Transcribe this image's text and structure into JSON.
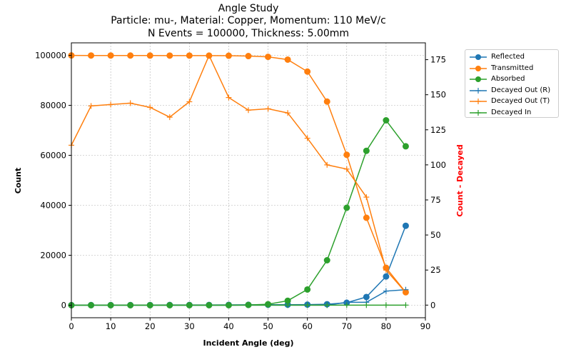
{
  "title_lines": [
    "Angle Study",
    "Particle: mu-, Material: Copper, Momentum: 110 MeV/c",
    "N Events = 100000, Thickness: 5.00mm"
  ],
  "colors": {
    "blue": "#1f77b4",
    "orange": "#ff7f0e",
    "green": "#2ca02c",
    "right_axis_label": "#ff0000",
    "grid": "#b0b0b0"
  },
  "chart_data": {
    "type": "line",
    "xlabel": "Incident Angle (deg)",
    "ylabel": "Count",
    "ylabel_right": "Count - Decayed",
    "xlim": [
      0,
      90
    ],
    "ylim_left": [
      -5000,
      105000
    ],
    "ylim_right": [
      -9,
      187
    ],
    "xticks": [
      "0",
      "10",
      "20",
      "30",
      "40",
      "50",
      "60",
      "70",
      "80",
      "90"
    ],
    "yticks_left": [
      "0",
      "20000",
      "40000",
      "60000",
      "80000",
      "100000"
    ],
    "yticks_right": [
      "0",
      "25",
      "50",
      "75",
      "100",
      "125",
      "150",
      "175"
    ],
    "grid": true,
    "legend_position": "outside-top-right",
    "x": [
      0,
      5,
      10,
      15,
      20,
      25,
      30,
      35,
      40,
      45,
      50,
      55,
      60,
      65,
      70,
      75,
      80,
      85
    ],
    "series": [
      {
        "name": "Reflected",
        "axis": "left",
        "marker": "o",
        "color": "#1f77b4",
        "values": [
          50,
          60,
          60,
          70,
          80,
          90,
          100,
          120,
          150,
          180,
          200,
          220,
          250,
          400,
          1000,
          3300,
          11500,
          31800
        ]
      },
      {
        "name": "Transmitted",
        "axis": "left",
        "marker": "o",
        "color": "#ff7f0e",
        "values": [
          99950,
          99940,
          99940,
          99930,
          99920,
          99910,
          99900,
          99880,
          99850,
          99700,
          99400,
          98300,
          93500,
          81500,
          60200,
          35000,
          15000,
          5200
        ]
      },
      {
        "name": "Absorbed",
        "axis": "left",
        "marker": "o",
        "color": "#2ca02c",
        "values": [
          0,
          0,
          0,
          0,
          0,
          0,
          0,
          0,
          0,
          120,
          400,
          1800,
          6300,
          18000,
          39000,
          61800,
          74000,
          63600
        ]
      },
      {
        "name": "Decayed Out (R)",
        "axis": "right",
        "marker": "+",
        "color": "#1f77b4",
        "values": [
          0,
          0,
          0,
          0,
          0,
          0,
          0,
          0,
          0,
          0,
          0,
          0,
          0,
          0,
          2,
          2,
          10,
          11
        ]
      },
      {
        "name": "Decayed Out (T)",
        "axis": "right",
        "marker": "+",
        "color": "#ff7f0e",
        "values": [
          114,
          142,
          143,
          144,
          141,
          134,
          145,
          178,
          148,
          139,
          140,
          137,
          119,
          100,
          97,
          77,
          25,
          9
        ]
      },
      {
        "name": "Decayed In",
        "axis": "right",
        "marker": "+",
        "color": "#2ca02c",
        "values": [
          0,
          0,
          0,
          0,
          0,
          0,
          0,
          0,
          0,
          0,
          0,
          0,
          0,
          0,
          0,
          0,
          0,
          0
        ]
      }
    ]
  }
}
